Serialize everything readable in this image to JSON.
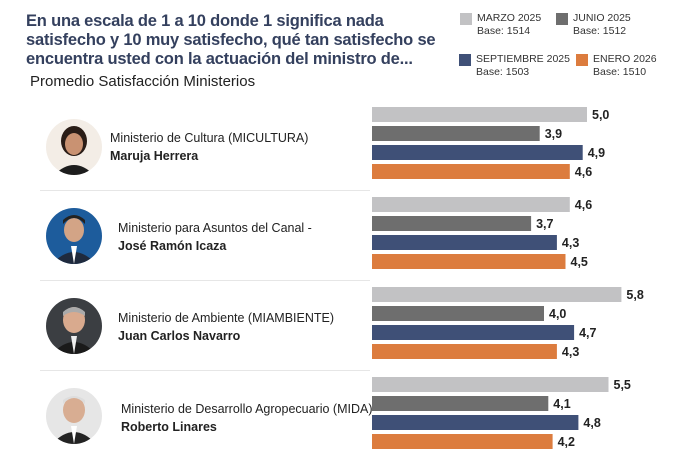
{
  "chart_data": {
    "type": "bar",
    "orientation": "horizontal",
    "title": "En una escala de 1 a 10 donde 1 significa nada satisfecho y 10 muy satisfecho, qué tan satisfecho se encuentra usted con la actuación del ministro de...",
    "subtitle": "Promedio Satisfacción Ministerios",
    "categories": [
      {
        "ministry": "Ministerio de Cultura (MICULTURA)",
        "minister": "Maruja Herrera"
      },
      {
        "ministry": "Ministerio para Asuntos del Canal -",
        "minister": "José Ramón Icaza"
      },
      {
        "ministry": "Ministerio de Ambiente (MIAMBIENTE)",
        "minister": "Juan Carlos Navarro"
      },
      {
        "ministry": "Ministerio de Desarrollo Agropecuario (MIDA)",
        "minister": "Roberto Linares"
      }
    ],
    "series": [
      {
        "name": "MARZO 2025",
        "base": "Base: 1514",
        "color": "#c2c2c4",
        "values": [
          5.0,
          4.6,
          5.8,
          5.5
        ],
        "labels": [
          "5,0",
          "4,6",
          "5,8",
          "5,5"
        ]
      },
      {
        "name": "JUNIO 2025",
        "base": "Base: 1512",
        "color": "#6e6e6e",
        "values": [
          3.9,
          3.7,
          4.0,
          4.1
        ],
        "labels": [
          "3,9",
          "3,7",
          "4,0",
          "4,1"
        ]
      },
      {
        "name": "SEPTIEMBRE 2025",
        "base": "Base: 1503",
        "color": "#3f5077",
        "values": [
          4.9,
          4.3,
          4.7,
          4.8
        ],
        "labels": [
          "4,9",
          "4,3",
          "4,7",
          "4,8"
        ]
      },
      {
        "name": "ENERO 2026",
        "base": "Base: 1510",
        "color": "#dc7c3e",
        "values": [
          4.6,
          4.5,
          4.3,
          4.2
        ],
        "labels": [
          "4,6",
          "4,5",
          "4,3",
          "4,2"
        ]
      }
    ],
    "legend": "top-right",
    "grid": false
  }
}
